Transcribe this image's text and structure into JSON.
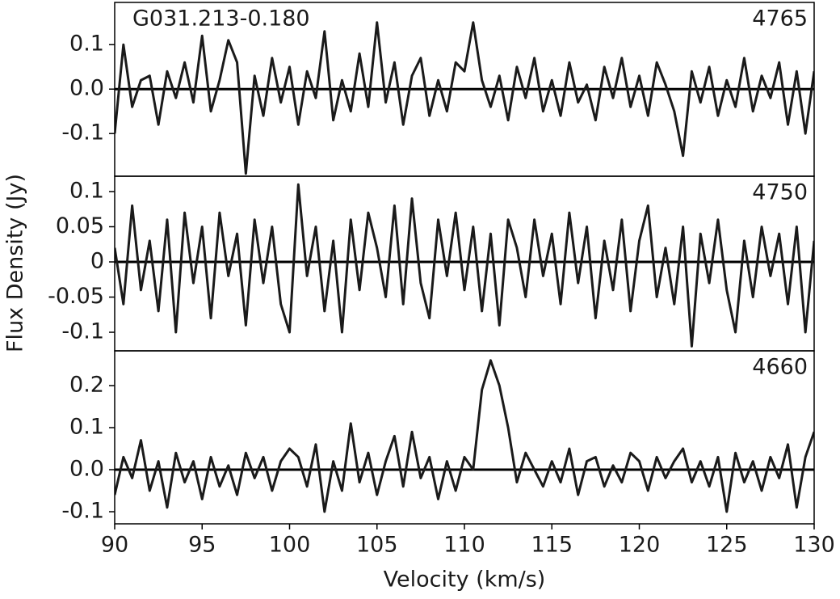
{
  "chart_data": [
    {
      "type": "line",
      "annotations": [
        "G031.213-0.180",
        "4765"
      ],
      "x": [
        90,
        90.5,
        91,
        91.5,
        92,
        92.5,
        93,
        93.5,
        94,
        94.5,
        95,
        95.5,
        96,
        96.5,
        97,
        97.5,
        98,
        98.5,
        99,
        99.5,
        100,
        100.5,
        101,
        101.5,
        102,
        102.5,
        103,
        103.5,
        104,
        104.5,
        105,
        105.5,
        106,
        106.5,
        107,
        107.5,
        108,
        108.5,
        109,
        109.5,
        110,
        110.5,
        111,
        111.5,
        112,
        112.5,
        113,
        113.5,
        114,
        114.5,
        115,
        115.5,
        116,
        116.5,
        117,
        117.5,
        118,
        118.5,
        119,
        119.5,
        120,
        120.5,
        121,
        121.5,
        122,
        122.5,
        123,
        123.5,
        124,
        124.5,
        125,
        125.5,
        126,
        126.5,
        127,
        127.5,
        128,
        128.5,
        129,
        129.5,
        130
      ],
      "values": [
        -0.1,
        0.1,
        -0.04,
        0.02,
        0.03,
        -0.08,
        0.04,
        -0.02,
        0.06,
        -0.03,
        0.12,
        -0.05,
        0.02,
        0.11,
        0.06,
        -0.19,
        0.03,
        -0.06,
        0.07,
        -0.03,
        0.05,
        -0.08,
        0.04,
        -0.02,
        0.13,
        -0.07,
        0.02,
        -0.05,
        0.08,
        -0.04,
        0.15,
        -0.03,
        0.06,
        -0.08,
        0.03,
        0.07,
        -0.06,
        0.02,
        -0.05,
        0.06,
        0.04,
        0.15,
        0.02,
        -0.04,
        0.03,
        -0.07,
        0.05,
        -0.02,
        0.07,
        -0.05,
        0.02,
        -0.06,
        0.06,
        -0.03,
        0.01,
        -0.07,
        0.05,
        -0.02,
        0.07,
        -0.04,
        0.03,
        -0.06,
        0.06,
        0.01,
        -0.05,
        -0.15,
        0.04,
        -0.03,
        0.05,
        -0.06,
        0.02,
        -0.04,
        0.07,
        -0.05,
        0.03,
        -0.02,
        0.06,
        -0.08,
        0.04,
        -0.1,
        0.04
      ],
      "color": "#1a1a1a",
      "xlim": [
        90,
        130
      ],
      "ylim": [
        -0.196,
        0.195
      ],
      "yticks": [
        -0.1,
        {
          "value": 0,
          "label": "0.0"
        },
        0.1
      ]
    },
    {
      "type": "line",
      "annotations": [
        "4750"
      ],
      "ylabel": "Flux Density (Jy)",
      "x": [
        90,
        90.5,
        91,
        91.5,
        92,
        92.5,
        93,
        93.5,
        94,
        94.5,
        95,
        95.5,
        96,
        96.5,
        97,
        97.5,
        98,
        98.5,
        99,
        99.5,
        100,
        100.5,
        101,
        101.5,
        102,
        102.5,
        103,
        103.5,
        104,
        104.5,
        105,
        105.5,
        106,
        106.5,
        107,
        107.5,
        108,
        108.5,
        109,
        109.5,
        110,
        110.5,
        111,
        111.5,
        112,
        112.5,
        113,
        113.5,
        114,
        114.5,
        115,
        115.5,
        116,
        116.5,
        117,
        117.5,
        118,
        118.5,
        119,
        119.5,
        120,
        120.5,
        121,
        121.5,
        122,
        122.5,
        123,
        123.5,
        124,
        124.5,
        125,
        125.5,
        126,
        126.5,
        127,
        127.5,
        128,
        128.5,
        129,
        129.5,
        130
      ],
      "values": [
        0.02,
        -0.06,
        0.08,
        -0.04,
        0.03,
        -0.07,
        0.06,
        -0.1,
        0.07,
        -0.03,
        0.05,
        -0.08,
        0.07,
        -0.02,
        0.04,
        -0.09,
        0.06,
        -0.03,
        0.05,
        -0.06,
        -0.1,
        0.11,
        -0.02,
        0.05,
        -0.07,
        0.03,
        -0.1,
        0.06,
        -0.04,
        0.07,
        0.02,
        -0.05,
        0.08,
        -0.06,
        0.09,
        -0.03,
        -0.08,
        0.06,
        -0.02,
        0.07,
        -0.04,
        0.05,
        -0.07,
        0.04,
        -0.09,
        0.06,
        0.02,
        -0.05,
        0.06,
        -0.02,
        0.04,
        -0.06,
        0.07,
        -0.03,
        0.05,
        -0.08,
        0.03,
        -0.04,
        0.06,
        -0.07,
        0.03,
        0.08,
        -0.05,
        0.02,
        -0.06,
        0.05,
        -0.12,
        0.04,
        -0.03,
        0.06,
        -0.04,
        -0.1,
        0.03,
        -0.05,
        0.05,
        -0.02,
        0.04,
        -0.06,
        0.05,
        -0.1,
        0.03
      ],
      "color": "#1a1a1a",
      "xlim": [
        90,
        130
      ],
      "ylim": [
        -0.1264,
        0.1218
      ],
      "yticks": [
        -0.1,
        -0.05,
        0,
        0.05,
        0.1
      ]
    },
    {
      "type": "line",
      "annotations": [
        "4660"
      ],
      "xlabel": "Velocity (km/s)",
      "x": [
        90,
        90.5,
        91,
        91.5,
        92,
        92.5,
        93,
        93.5,
        94,
        94.5,
        95,
        95.5,
        96,
        96.5,
        97,
        97.5,
        98,
        98.5,
        99,
        99.5,
        100,
        100.5,
        101,
        101.5,
        102,
        102.5,
        103,
        103.5,
        104,
        104.5,
        105,
        105.5,
        106,
        106.5,
        107,
        107.5,
        108,
        108.5,
        109,
        109.5,
        110,
        110.5,
        111,
        111.5,
        112,
        112.5,
        113,
        113.5,
        114,
        114.5,
        115,
        115.5,
        116,
        116.5,
        117,
        117.5,
        118,
        118.5,
        119,
        119.5,
        120,
        120.5,
        121,
        121.5,
        122,
        122.5,
        123,
        123.5,
        124,
        124.5,
        125,
        125.5,
        126,
        126.5,
        127,
        127.5,
        128,
        128.5,
        129,
        129.5,
        130
      ],
      "values": [
        -0.06,
        0.03,
        -0.02,
        0.07,
        -0.05,
        0.02,
        -0.09,
        0.04,
        -0.03,
        0.02,
        -0.07,
        0.03,
        -0.04,
        0.01,
        -0.06,
        0.04,
        -0.02,
        0.03,
        -0.05,
        0.02,
        0.05,
        0.03,
        -0.04,
        0.06,
        -0.1,
        0.02,
        -0.05,
        0.11,
        -0.03,
        0.04,
        -0.06,
        0.02,
        0.08,
        -0.04,
        0.09,
        -0.02,
        0.03,
        -0.07,
        0.02,
        -0.05,
        0.03,
        0,
        0.19,
        0.26,
        0.2,
        0.1,
        -0.03,
        0.04,
        0,
        -0.04,
        0.02,
        -0.03,
        0.05,
        -0.06,
        0.02,
        0.03,
        -0.04,
        0.01,
        -0.03,
        0.04,
        0.02,
        -0.05,
        0.03,
        -0.02,
        0.02,
        0.05,
        -0.03,
        0.02,
        -0.04,
        0.03,
        -0.1,
        0.04,
        -0.03,
        0.02,
        -0.05,
        0.03,
        -0.02,
        0.06,
        -0.09,
        0.03,
        0.09
      ],
      "color": "#1a1a1a",
      "xlim": [
        90,
        130
      ],
      "ylim": [
        -0.1288,
        0.2827
      ],
      "xticks": [
        90,
        95,
        100,
        105,
        110,
        115,
        120,
        125,
        130
      ],
      "yticks": [
        -0.1,
        {
          "value": 0,
          "label": "0.0"
        },
        0.1,
        0.2
      ]
    }
  ]
}
